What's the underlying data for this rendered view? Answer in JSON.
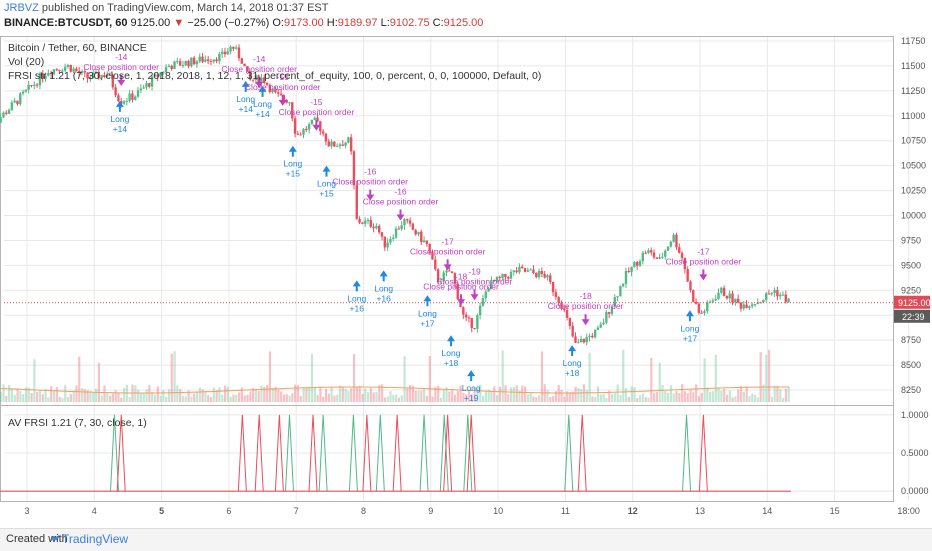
{
  "header": {
    "author": "JRBVZ",
    "published": "published on TradingView.com, March 14, 2018 01:37 EST",
    "symbol": "BINANCE:BTCUSDT, 60",
    "price_now": "9125.00",
    "change": "−25.00 (−0.27%)",
    "o_label": "O:",
    "o_val": "9173.00",
    "h_label": "H:",
    "h_val": "9189.97",
    "l_label": "L:",
    "l_val": "9102.75",
    "c_label": "C:",
    "c_val": "9125.00"
  },
  "legend": {
    "line1": "Bitcoin / Tether, 60, BINANCE",
    "line2": "Vol (20)",
    "line3": "FRSI str 1.21 (7, 30, close, 1, 2018, 2018, 1, 12, 1, 31, percent_of_equity, 100, 0, percent, 0, 0, 100000, Default, 0)",
    "lower": "AV FRSI 1.21 (7, 30, close, 1)"
  },
  "price_tag": "9125.00",
  "time_tag": "22:39",
  "footer": {
    "created": "Created with",
    "brand": "TradingView"
  },
  "colors": {
    "up": "#53b987",
    "down": "#eb4d5c",
    "signal_long": "#1e88e5",
    "signal_close": "#c040c0",
    "ma": "#f0a060",
    "grid": "#e8e8e8",
    "last_line": "#e04a55"
  },
  "chart_data": [
    {
      "type": "candlestick",
      "title": "Bitcoin / Tether, 60, BINANCE",
      "ylim": [
        8100,
        11800
      ],
      "y_ticks": [
        8250,
        8500,
        8750,
        9000,
        9250,
        9500,
        9750,
        10000,
        10250,
        10500,
        10750,
        11000,
        11250,
        11500,
        11750
      ],
      "x_ticks": [
        "3",
        "4",
        "5",
        "6",
        "7",
        "8",
        "9",
        "10",
        "11",
        "12",
        "13",
        "14",
        "15",
        "18:00"
      ],
      "bold_ticks": [
        "5",
        "12"
      ],
      "last_price": 9125,
      "close_path": [
        {
          "day": 2.4,
          "close": 10850
        },
        {
          "day": 2.7,
          "close": 11050
        },
        {
          "day": 3.0,
          "close": 11250
        },
        {
          "day": 3.3,
          "close": 11450
        },
        {
          "day": 3.6,
          "close": 11500
        },
        {
          "day": 3.9,
          "close": 11380
        },
        {
          "day": 4.2,
          "close": 11420
        },
        {
          "day": 4.38,
          "close": 11150
        },
        {
          "day": 4.6,
          "close": 11200
        },
        {
          "day": 4.85,
          "close": 11350
        },
        {
          "day": 5.1,
          "close": 11500
        },
        {
          "day": 5.5,
          "close": 11550
        },
        {
          "day": 5.9,
          "close": 11600
        },
        {
          "day": 6.05,
          "close": 11700
        },
        {
          "day": 6.2,
          "close": 11550
        },
        {
          "day": 6.3,
          "close": 11350
        },
        {
          "day": 6.5,
          "close": 11380
        },
        {
          "day": 6.7,
          "close": 11200
        },
        {
          "day": 6.9,
          "close": 11150
        },
        {
          "day": 7.0,
          "close": 10800
        },
        {
          "day": 7.3,
          "close": 10950
        },
        {
          "day": 7.5,
          "close": 10700
        },
        {
          "day": 7.8,
          "close": 10750
        },
        {
          "day": 7.9,
          "close": 9950
        },
        {
          "day": 8.2,
          "close": 9900
        },
        {
          "day": 8.3,
          "close": 9700
        },
        {
          "day": 8.6,
          "close": 9950
        },
        {
          "day": 8.95,
          "close": 9700
        },
        {
          "day": 9.1,
          "close": 9350
        },
        {
          "day": 9.3,
          "close": 9450
        },
        {
          "day": 9.5,
          "close": 8950
        },
        {
          "day": 9.65,
          "close": 8900
        },
        {
          "day": 9.85,
          "close": 9300
        },
        {
          "day": 10.3,
          "close": 9450
        },
        {
          "day": 10.7,
          "close": 9400
        },
        {
          "day": 10.95,
          "close": 9100
        },
        {
          "day": 11.15,
          "close": 8700
        },
        {
          "day": 11.5,
          "close": 8850
        },
        {
          "day": 11.9,
          "close": 9400
        },
        {
          "day": 12.2,
          "close": 9650
        },
        {
          "day": 12.4,
          "close": 9550
        },
        {
          "day": 12.6,
          "close": 9800
        },
        {
          "day": 12.75,
          "close": 9550
        },
        {
          "day": 12.85,
          "close": 9250
        },
        {
          "day": 13.0,
          "close": 9000
        },
        {
          "day": 13.3,
          "close": 9250
        },
        {
          "day": 13.6,
          "close": 9100
        },
        {
          "day": 13.9,
          "close": 9150
        },
        {
          "day": 14.1,
          "close": 9250
        },
        {
          "day": 14.35,
          "close": 9125
        }
      ],
      "signals": [
        {
          "day": 4.38,
          "price": 11150,
          "side": "long",
          "label": "Long",
          "qty": "+14",
          "close_label": "Close position order",
          "close_qty": "-14",
          "close_day": 4.4,
          "close_price": 11400
        },
        {
          "day": 6.25,
          "price": 11350,
          "side": "long",
          "label": "Long",
          "qty": "+14",
          "close_label": "Close position order",
          "close_qty": "-14",
          "close_day": 6.45,
          "close_price": 11380
        },
        {
          "day": 6.5,
          "price": 11300,
          "side": "long",
          "label": "Long",
          "qty": "+14",
          "close_label": "Close position order",
          "close_qty": "-15",
          "close_day": 6.8,
          "close_price": 11200
        },
        {
          "day": 6.95,
          "price": 10700,
          "side": "long",
          "label": "Long",
          "qty": "+15",
          "close_label": "Close position order",
          "close_qty": "-15",
          "close_day": 7.3,
          "close_price": 10950
        },
        {
          "day": 7.45,
          "price": 10500,
          "side": "long",
          "label": "Long",
          "qty": "+15",
          "close_label": "Close position order",
          "close_qty": "-16",
          "close_day": 8.1,
          "close_price": 10250
        },
        {
          "day": 7.9,
          "price": 9350,
          "side": "long",
          "label": "Long",
          "qty": "+16",
          "close_label": "Close position order",
          "close_qty": "-16",
          "close_day": 8.55,
          "close_price": 10050
        },
        {
          "day": 8.3,
          "price": 9450,
          "side": "long",
          "label": "Long",
          "qty": "+16",
          "close_label": "Close position order",
          "close_qty": "-17",
          "close_day": 9.25,
          "close_price": 9550
        },
        {
          "day": 8.95,
          "price": 9200,
          "side": "long",
          "label": "Long",
          "qty": "+17",
          "close_label": "Close position order",
          "close_qty": "-18",
          "close_day": 9.45,
          "close_price": 9200
        },
        {
          "day": 9.3,
          "price": 8800,
          "side": "long",
          "label": "Long",
          "qty": "+18",
          "close_label": "Close position order",
          "close_qty": "-19",
          "close_day": 9.65,
          "close_price": 9250
        },
        {
          "day": 9.6,
          "price": 8450,
          "side": "long",
          "label": "Long",
          "qty": "+19",
          "close_label": "Close position order",
          "close_qty": "-18",
          "close_day": 11.3,
          "close_price": 9000
        },
        {
          "day": 11.1,
          "price": 8700,
          "side": "long",
          "label": "Long",
          "qty": "+18",
          "close_label": "Close position order",
          "close_qty": "-17",
          "close_day": 13.05,
          "close_price": 9450
        },
        {
          "day": 12.85,
          "price": 9050,
          "side": "long",
          "label": "Long",
          "qty": "+17",
          "close_label": "",
          "close_qty": "",
          "close_day": 0,
          "close_price": 0
        }
      ]
    },
    {
      "type": "line",
      "title": "AV FRSI 1.21 (7, 30, close, 1)",
      "ylim": [
        -0.05,
        1.05
      ],
      "y_ticks": [
        "1.0000",
        "0.5000",
        "0.0000"
      ],
      "series": [
        {
          "name": "",
          "color": "#53b987",
          "spikes": [
            4.3,
            6.9,
            7.4,
            7.85,
            8.25,
            8.9,
            9.2,
            9.55,
            11.05,
            12.8
          ]
        },
        {
          "name": "",
          "color": "#eb4d5c",
          "spikes": [
            4.4,
            6.2,
            6.45,
            6.75,
            7.25,
            8.05,
            8.5,
            9.25,
            9.6,
            11.25,
            13.05
          ]
        }
      ]
    }
  ]
}
